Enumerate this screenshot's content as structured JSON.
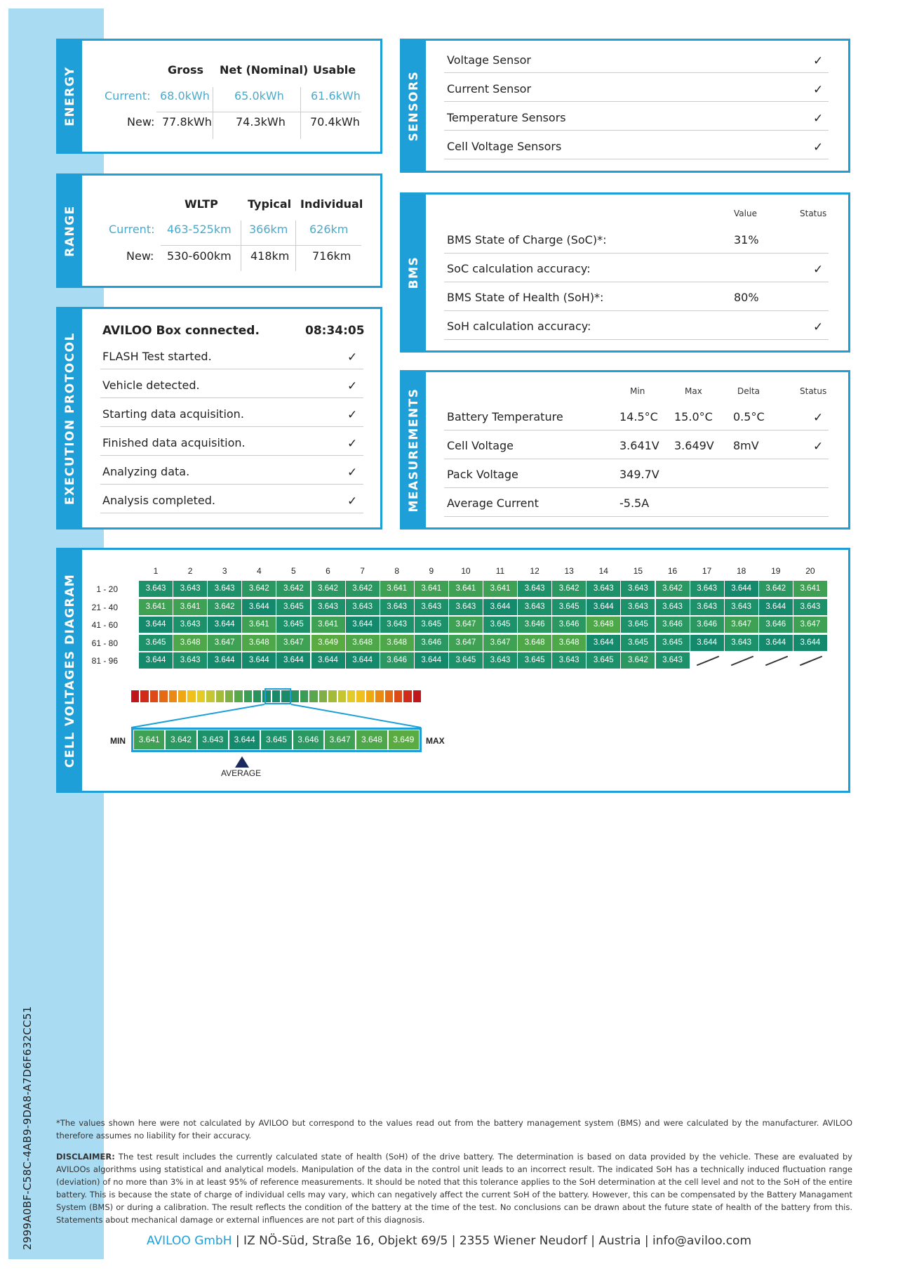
{
  "doc_id": "2999A0BF-C58C-4AB9-9DA8-A7D6F632CC51",
  "colors": {
    "accent": "#1e9fd8",
    "sidebar": "#a9dbf2",
    "current_value": "#4aaacb"
  },
  "energy": {
    "label": "ENERGY",
    "headers": [
      "Gross",
      "Net (Nominal)",
      "Usable"
    ],
    "current_label": "Current:",
    "current": [
      "68.0kWh",
      "65.0kWh",
      "61.6kWh"
    ],
    "new_label": "New:",
    "new": [
      "77.8kWh",
      "74.3kWh",
      "70.4kWh"
    ]
  },
  "range": {
    "label": "RANGE",
    "headers": [
      "WLTP",
      "Typical",
      "Individual"
    ],
    "current_label": "Current:",
    "current": [
      "463-525km",
      "366km",
      "626km"
    ],
    "new_label": "New:",
    "new": [
      "530-600km",
      "418km",
      "716km"
    ]
  },
  "execution": {
    "label": "EXECUTION PROTOCOL",
    "title": "AVILOO Box connected.",
    "time": "08:34:05",
    "steps": [
      "FLASH Test started.",
      "Vehicle detected.",
      "Starting data acquisition.",
      "Finished data acquisition.",
      "Analyzing data.",
      "Analysis completed."
    ],
    "check": "✓"
  },
  "sensors": {
    "label": "SENSORS",
    "items": [
      "Voltage Sensor",
      "Current Sensor",
      "Temperature Sensors",
      "Cell Voltage Sensors"
    ]
  },
  "bms": {
    "label": "BMS",
    "col_value": "Value",
    "col_status": "Status",
    "rows": [
      {
        "label": "BMS State of Charge (SoC)*:",
        "value": "31%"
      },
      {
        "label": "SoC calculation accuracy:",
        "status": "ok"
      },
      {
        "label": "BMS State of Health (SoH)*:",
        "value": "80%"
      },
      {
        "label": "SoH calculation accuracy:",
        "status": "ok"
      }
    ]
  },
  "measurements": {
    "label": "MEASUREMENTS",
    "cols": [
      "Min",
      "Max",
      "Delta",
      "Status"
    ],
    "rows": [
      {
        "label": "Battery Temperature",
        "min": "14.5°C",
        "max": "15.0°C",
        "delta": "0.5°C",
        "status": "ok"
      },
      {
        "label": "Cell Voltage",
        "min": "3.641V",
        "max": "3.649V",
        "delta": "8mV",
        "status": "ok"
      },
      {
        "label": "Pack Voltage",
        "min": "349.7V"
      },
      {
        "label": "Average Current",
        "min": "-5.5A"
      }
    ]
  },
  "cell_voltages": {
    "label": "CELL VOLTAGES DIAGRAM",
    "columns": [
      "1",
      "2",
      "3",
      "4",
      "5",
      "6",
      "7",
      "8",
      "9",
      "10",
      "11",
      "12",
      "13",
      "14",
      "15",
      "16",
      "17",
      "18",
      "19",
      "20"
    ],
    "row_labels": [
      "1 - 20",
      "21 - 40",
      "41 - 60",
      "61 - 80",
      "81 - 96"
    ],
    "rows": [
      [
        "3.643",
        "3.643",
        "3.643",
        "3.642",
        "3.642",
        "3.642",
        "3.642",
        "3.641",
        "3.641",
        "3.641",
        "3.641",
        "3.643",
        "3.642",
        "3.643",
        "3.643",
        "3.642",
        "3.643",
        "3.644",
        "3.642",
        "3.641"
      ],
      [
        "3.641",
        "3.641",
        "3.642",
        "3.644",
        "3.645",
        "3.643",
        "3.643",
        "3.643",
        "3.643",
        "3.643",
        "3.644",
        "3.643",
        "3.645",
        "3.644",
        "3.643",
        "3.643",
        "3.643",
        "3.643",
        "3.644",
        "3.643"
      ],
      [
        "3.644",
        "3.643",
        "3.644",
        "3.641",
        "3.645",
        "3.641",
        "3.644",
        "3.643",
        "3.645",
        "3.647",
        "3.645",
        "3.646",
        "3.646",
        "3.648",
        "3.645",
        "3.646",
        "3.646",
        "3.647",
        "3.646",
        "3.647"
      ],
      [
        "3.645",
        "3.648",
        "3.647",
        "3.648",
        "3.647",
        "3.649",
        "3.648",
        "3.648",
        "3.646",
        "3.647",
        "3.647",
        "3.648",
        "3.648",
        "3.644",
        "3.645",
        "3.645",
        "3.644",
        "3.643",
        "3.644",
        "3.644"
      ],
      [
        "3.644",
        "3.643",
        "3.644",
        "3.644",
        "3.644",
        "3.644",
        "3.644",
        "3.646",
        "3.644",
        "3.645",
        "3.643",
        "3.645",
        "3.643",
        "3.645",
        "3.642",
        "3.643"
      ]
    ],
    "legend": {
      "min_label": "MIN",
      "max_label": "MAX",
      "average_label": "AVERAGE",
      "scale": [
        "3.641",
        "3.642",
        "3.643",
        "3.644",
        "3.645",
        "3.646",
        "3.647",
        "3.648",
        "3.649"
      ],
      "average": "3.644"
    }
  },
  "footnote": "*The values shown here were not calculated by AVILOO but correspond to the values read out from the battery management system (BMS) and were calculated by the manufacturer. AVILOO therefore assumes no liability for their accuracy.",
  "disclaimer_label": "DISCLAIMER:",
  "disclaimer": " The test result includes the currently calculated state of health (SoH) of the drive battery. The determination is based on data provided by the vehicle. These are evaluated by AVILOOs algorithms using statistical and analytical models. Manipulation of the data in the control unit leads to an incorrect result. The indicated SoH has a technically induced fluctuation range (deviation) of no more than 3% in at least 95% of reference measurements. It should be noted that this tolerance applies to the SoH determination at the cell level and not to the SoH of the entire battery. This is because the state of charge of individual cells may vary, which can negatively affect the current SoH of the battery. However, this can be compensated by the Battery Managament System (BMS) or during a calibration. The result reflects the condition of the battery at the time of the test. No conclusions can be drawn about the future state of health of the battery from this. Statements about mechanical damage or external influences are not part of this diagnosis.",
  "footer": {
    "company": "AVILOO GmbH",
    "rest": " | IZ NÖ-Süd, Straße 16, Objekt 69/5 | 2355 Wiener Neudorf | Austria | info@aviloo.com"
  }
}
